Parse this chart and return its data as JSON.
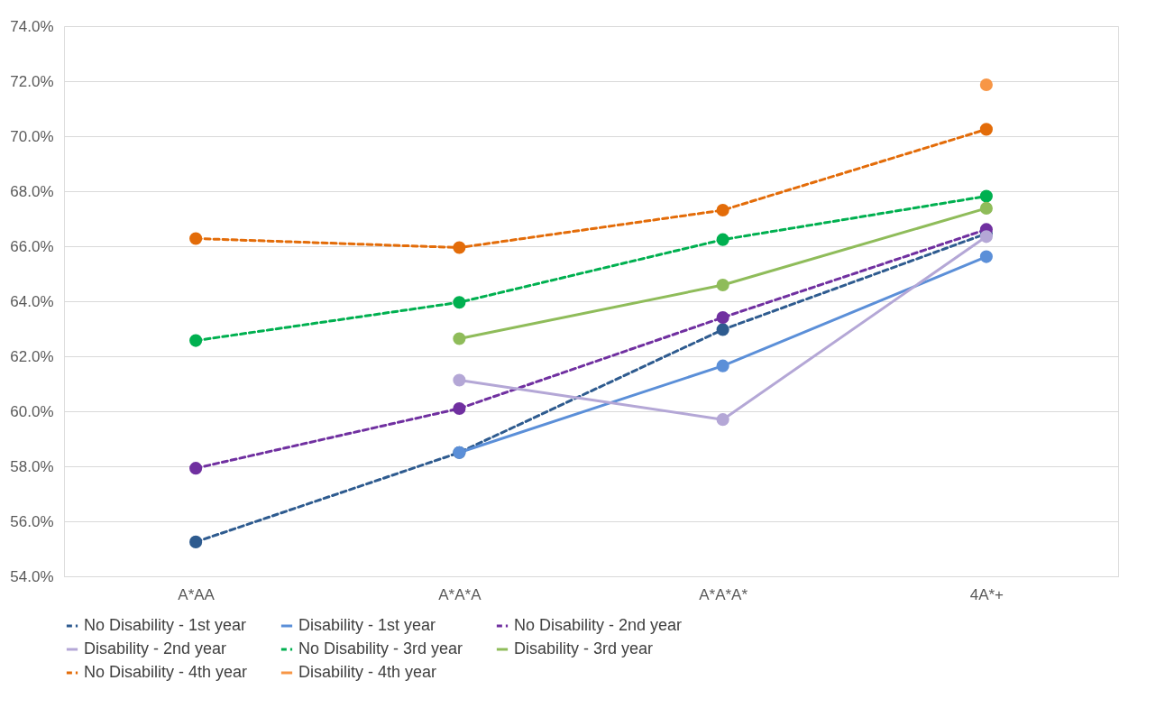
{
  "chart_data": {
    "type": "line",
    "categories": [
      "A*AA",
      "A*A*A",
      "A*A*A*",
      "4A*+"
    ],
    "ylim": [
      54,
      74
    ],
    "yticks": [
      {
        "value": 54,
        "label": "54.0%"
      },
      {
        "value": 56,
        "label": "56.0%"
      },
      {
        "value": 58,
        "label": "58.0%"
      },
      {
        "value": 60,
        "label": "60.0%"
      },
      {
        "value": 62,
        "label": "62.0%"
      },
      {
        "value": 64,
        "label": "64.0%"
      },
      {
        "value": 66,
        "label": "66.0%"
      },
      {
        "value": 68,
        "label": "68.0%"
      },
      {
        "value": 70,
        "label": "70.0%"
      },
      {
        "value": 72,
        "label": "72.0%"
      },
      {
        "value": 74,
        "label": "74.0%"
      }
    ],
    "grid": "y",
    "legend": "bottom",
    "marker": "circle",
    "series": [
      {
        "name": "No Disability - 1st year",
        "color": "#2e5b8f",
        "line_style": "dashed",
        "values": [
          55.25,
          58.5,
          62.97,
          66.46
        ]
      },
      {
        "name": "Disability - 1st year",
        "color": "#5b8fd8",
        "line_style": "solid",
        "values": [
          null,
          58.5,
          61.65,
          65.62
        ]
      },
      {
        "name": "No Disability - 2nd year",
        "color": "#7030a0",
        "line_style": "dashed",
        "values": [
          57.93,
          60.1,
          63.41,
          66.61
        ]
      },
      {
        "name": "Disability - 2nd year",
        "color": "#b4a7d6",
        "line_style": "solid",
        "values": [
          null,
          61.13,
          59.7,
          66.35
        ]
      },
      {
        "name": "No Disability - 3rd year",
        "color": "#00b050",
        "line_style": "dashed",
        "values": [
          62.57,
          63.96,
          66.24,
          67.82
        ]
      },
      {
        "name": "Disability - 3rd year",
        "color": "#8fbc5a",
        "line_style": "solid",
        "values": [
          null,
          62.64,
          64.59,
          67.38
        ]
      },
      {
        "name": "No Disability - 4th year",
        "color": "#e36c09",
        "line_style": "dashed",
        "values": [
          66.28,
          65.95,
          67.31,
          70.25
        ]
      },
      {
        "name": "Disability - 4th year",
        "color": "#f79646",
        "line_style": "solid",
        "values": [
          null,
          null,
          null,
          71.87
        ]
      }
    ]
  }
}
